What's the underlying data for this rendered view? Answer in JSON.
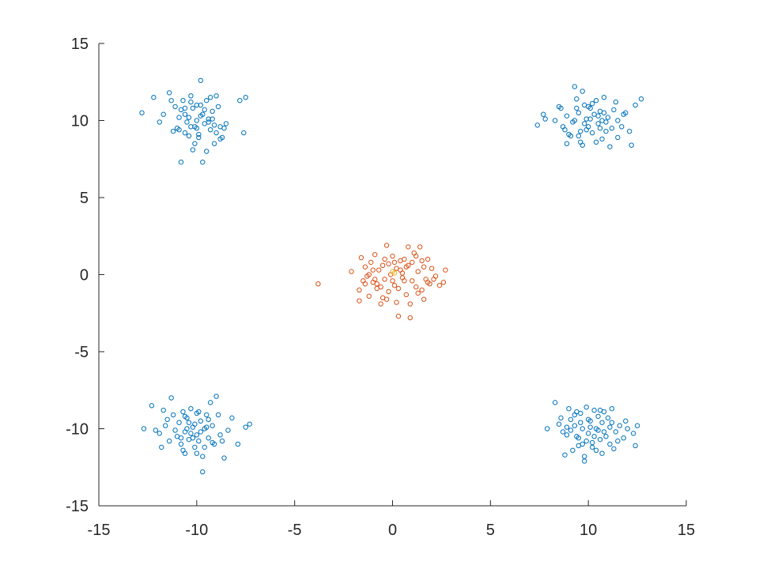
{
  "chart_data": {
    "type": "scatter",
    "title": "",
    "xlabel": "",
    "ylabel": "",
    "xlim": [
      -15,
      15
    ],
    "ylim": [
      -15,
      15
    ],
    "grid": false,
    "x_ticks": [
      "-15",
      "-10",
      "-5",
      "0",
      "5",
      "10",
      "15"
    ],
    "y_ticks": [
      "15",
      "10",
      "5",
      "0",
      "-5",
      "-10",
      "-15"
    ],
    "x_tick_values": [
      -15,
      -10,
      -5,
      0,
      5,
      10,
      15
    ],
    "y_tick_values": [
      15,
      10,
      5,
      0,
      -5,
      -10,
      -15
    ],
    "colors": {
      "outer": "#0072bd",
      "center": "#d95319",
      "center_highlight": "#edb120"
    },
    "series": [
      {
        "color": "#0072bd",
        "marker": "circle-open",
        "points": [
          [
            -12.8,
            10.5
          ],
          [
            -12.2,
            11.5
          ],
          [
            -11.9,
            9.9
          ],
          [
            -11.7,
            10.4
          ],
          [
            -11.4,
            11.8
          ],
          [
            -11.3,
            11.3
          ],
          [
            -11.2,
            9.3
          ],
          [
            -11.0,
            9.5
          ],
          [
            -10.9,
            9.4
          ],
          [
            -10.8,
            10.7
          ],
          [
            -10.7,
            11.3
          ],
          [
            -10.6,
            9.2
          ],
          [
            -10.5,
            9.9
          ],
          [
            -10.4,
            10.2
          ],
          [
            -10.3,
            11.2
          ],
          [
            -10.2,
            10.8
          ],
          [
            -10.1,
            9.6
          ],
          [
            -10.0,
            10.0
          ],
          [
            -9.9,
            9.1
          ],
          [
            -9.8,
            11.0
          ],
          [
            -9.7,
            10.4
          ],
          [
            -9.6,
            9.8
          ],
          [
            -9.5,
            11.3
          ],
          [
            -9.4,
            10.1
          ],
          [
            -9.3,
            9.4
          ],
          [
            -9.2,
            10.6
          ],
          [
            -9.1,
            8.5
          ],
          [
            -9.0,
            9.2
          ],
          [
            -8.9,
            10.9
          ],
          [
            -8.8,
            9.6
          ],
          [
            -8.7,
            8.9
          ],
          [
            -8.6,
            9.5
          ],
          [
            -8.5,
            9.8
          ],
          [
            -10.8,
            7.3
          ],
          [
            -9.7,
            7.3
          ],
          [
            -9.5,
            8.0
          ],
          [
            -10.2,
            8.1
          ],
          [
            -10.1,
            8.5
          ],
          [
            -9.9,
            8.9
          ],
          [
            -7.8,
            11.3
          ],
          [
            -7.5,
            11.5
          ],
          [
            -7.6,
            9.2
          ],
          [
            -10.6,
            10.4
          ],
          [
            -10.4,
            9.0
          ],
          [
            -10.0,
            11.0
          ],
          [
            -9.8,
            10.3
          ],
          [
            -9.3,
            11.5
          ],
          [
            -9.0,
            11.6
          ],
          [
            -8.8,
            8.8
          ],
          [
            -10.3,
            9.6
          ],
          [
            -9.8,
            12.6
          ],
          [
            -10.6,
            10.8
          ],
          [
            -11.1,
            10.9
          ],
          [
            -10.3,
            11.6
          ],
          [
            -9.4,
            9.9
          ],
          [
            -9.2,
            10.1
          ],
          [
            -10.9,
            10.2
          ],
          [
            -10.0,
            9.5
          ],
          [
            -9.6,
            10.7
          ],
          [
            -9.1,
            9.7
          ],
          [
            7.4,
            9.7
          ],
          [
            7.7,
            10.4
          ],
          [
            7.8,
            10.1
          ],
          [
            8.3,
            10.0
          ],
          [
            8.6,
            10.8
          ],
          [
            8.7,
            9.6
          ],
          [
            8.9,
            10.3
          ],
          [
            8.9,
            8.5
          ],
          [
            9.1,
            9.0
          ],
          [
            9.2,
            9.9
          ],
          [
            9.3,
            12.2
          ],
          [
            9.4,
            11.4
          ],
          [
            9.5,
            10.5
          ],
          [
            9.6,
            9.3
          ],
          [
            9.7,
            8.4
          ],
          [
            9.8,
            11.0
          ],
          [
            9.9,
            10.1
          ],
          [
            10.0,
            9.6
          ],
          [
            10.1,
            10.8
          ],
          [
            10.2,
            9.2
          ],
          [
            10.3,
            10.4
          ],
          [
            10.4,
            11.3
          ],
          [
            10.5,
            9.8
          ],
          [
            10.6,
            10.6
          ],
          [
            10.7,
            8.8
          ],
          [
            10.8,
            11.5
          ],
          [
            10.9,
            9.9
          ],
          [
            11.0,
            10.2
          ],
          [
            11.1,
            8.3
          ],
          [
            11.2,
            9.5
          ],
          [
            11.3,
            10.7
          ],
          [
            11.5,
            10.0
          ],
          [
            11.7,
            9.6
          ],
          [
            11.9,
            10.5
          ],
          [
            12.2,
            8.4
          ],
          [
            12.4,
            11.0
          ],
          [
            12.7,
            11.4
          ],
          [
            12.1,
            9.3
          ],
          [
            9.0,
            9.1
          ],
          [
            9.6,
            8.6
          ],
          [
            10.5,
            10.3
          ],
          [
            9.8,
            9.8
          ],
          [
            10.1,
            10.1
          ],
          [
            10.6,
            9.5
          ],
          [
            9.4,
            10.8
          ],
          [
            11.4,
            11.2
          ],
          [
            8.5,
            10.9
          ],
          [
            10.8,
            10.5
          ],
          [
            9.7,
            11.9
          ],
          [
            10.2,
            11.1
          ],
          [
            9.5,
            9.0
          ],
          [
            10.9,
            9.3
          ],
          [
            11.8,
            10.4
          ],
          [
            9.3,
            10.0
          ],
          [
            10.4,
            8.6
          ],
          [
            11.5,
            8.9
          ],
          [
            8.8,
            9.4
          ],
          [
            10.0,
            10.9
          ],
          [
            10.7,
            10.0
          ],
          [
            9.9,
            9.4
          ],
          [
            -12.7,
            -10.0
          ],
          [
            -12.3,
            -8.5
          ],
          [
            -12.1,
            -10.1
          ],
          [
            -11.9,
            -10.3
          ],
          [
            -11.7,
            -8.8
          ],
          [
            -11.5,
            -9.4
          ],
          [
            -11.4,
            -10.8
          ],
          [
            -11.3,
            -8.0
          ],
          [
            -11.2,
            -9.1
          ],
          [
            -11.0,
            -10.5
          ],
          [
            -10.9,
            -9.6
          ],
          [
            -10.8,
            -11.0
          ],
          [
            -10.7,
            -8.9
          ],
          [
            -10.6,
            -10.2
          ],
          [
            -10.5,
            -9.3
          ],
          [
            -10.4,
            -10.7
          ],
          [
            -10.3,
            -8.7
          ],
          [
            -10.2,
            -9.9
          ],
          [
            -10.1,
            -11.2
          ],
          [
            -10.0,
            -10.4
          ],
          [
            -9.9,
            -8.9
          ],
          [
            -9.8,
            -9.5
          ],
          [
            -9.7,
            -11.8
          ],
          [
            -9.6,
            -10.0
          ],
          [
            -9.5,
            -9.1
          ],
          [
            -9.4,
            -10.6
          ],
          [
            -9.3,
            -8.3
          ],
          [
            -9.2,
            -9.8
          ],
          [
            -9.1,
            -11.0
          ],
          [
            -9.0,
            -7.9
          ],
          [
            -8.8,
            -10.4
          ],
          [
            -8.6,
            -11.9
          ],
          [
            -8.4,
            -10.1
          ],
          [
            -8.2,
            -9.3
          ],
          [
            -7.9,
            -11.0
          ],
          [
            -7.5,
            -9.9
          ],
          [
            -7.3,
            -9.7
          ],
          [
            -9.7,
            -12.8
          ],
          [
            -10.6,
            -11.6
          ],
          [
            -8.7,
            -10.8
          ],
          [
            -10.3,
            -10.3
          ],
          [
            -10.1,
            -9.7
          ],
          [
            -9.9,
            -10.8
          ],
          [
            -11.1,
            -10.1
          ],
          [
            -10.7,
            -11.4
          ],
          [
            -9.4,
            -9.4
          ],
          [
            -10.0,
            -9.0
          ],
          [
            -10.5,
            -10.0
          ],
          [
            -9.6,
            -11.2
          ],
          [
            -11.6,
            -9.8
          ],
          [
            -10.2,
            -10.6
          ],
          [
            -9.8,
            -10.2
          ],
          [
            -10.4,
            -9.6
          ],
          [
            -11.8,
            -11.2
          ],
          [
            -9.2,
            -10.9
          ],
          [
            -10.8,
            -10.6
          ],
          [
            -9.5,
            -9.9
          ],
          [
            -10.0,
            -11.6
          ],
          [
            -8.9,
            -9.1
          ],
          [
            -10.6,
            -9.2
          ],
          [
            7.9,
            -10.0
          ],
          [
            8.3,
            -8.3
          ],
          [
            8.5,
            -9.7
          ],
          [
            8.7,
            -10.2
          ],
          [
            8.8,
            -11.7
          ],
          [
            8.9,
            -10.4
          ],
          [
            9.0,
            -8.7
          ],
          [
            9.1,
            -9.4
          ],
          [
            9.2,
            -11.4
          ],
          [
            9.3,
            -9.8
          ],
          [
            9.4,
            -8.9
          ],
          [
            9.5,
            -10.6
          ],
          [
            9.6,
            -9.0
          ],
          [
            9.7,
            -11.0
          ],
          [
            9.8,
            -12.1
          ],
          [
            9.9,
            -8.6
          ],
          [
            10.0,
            -10.3
          ],
          [
            10.1,
            -9.5
          ],
          [
            10.2,
            -11.2
          ],
          [
            10.3,
            -8.8
          ],
          [
            10.4,
            -10.0
          ],
          [
            10.5,
            -9.2
          ],
          [
            10.6,
            -10.7
          ],
          [
            10.7,
            -11.6
          ],
          [
            10.8,
            -8.9
          ],
          [
            10.9,
            -10.5
          ],
          [
            11.0,
            -9.3
          ],
          [
            11.1,
            -11.0
          ],
          [
            11.2,
            -8.7
          ],
          [
            11.4,
            -10.2
          ],
          [
            11.6,
            -9.8
          ],
          [
            11.8,
            -10.6
          ],
          [
            12.0,
            -10.0
          ],
          [
            12.3,
            -10.3
          ],
          [
            12.5,
            -9.8
          ],
          [
            12.4,
            -11.1
          ],
          [
            11.3,
            -11.3
          ],
          [
            9.8,
            -11.8
          ],
          [
            10.2,
            -10.9
          ],
          [
            9.6,
            -9.6
          ],
          [
            10.0,
            -9.4
          ],
          [
            10.8,
            -10.2
          ],
          [
            9.4,
            -10.5
          ],
          [
            11.2,
            -9.6
          ],
          [
            10.6,
            -8.8
          ],
          [
            9.7,
            -10.0
          ],
          [
            10.4,
            -11.4
          ],
          [
            9.1,
            -10.1
          ],
          [
            10.1,
            -9.9
          ],
          [
            11.5,
            -10.8
          ],
          [
            8.6,
            -9.3
          ],
          [
            9.9,
            -10.8
          ],
          [
            10.7,
            -9.6
          ],
          [
            11.9,
            -9.5
          ],
          [
            10.3,
            -10.5
          ],
          [
            9.3,
            -9.1
          ],
          [
            10.5,
            -10.1
          ],
          [
            8.9,
            -9.9
          ],
          [
            11.1,
            -9.9
          ],
          [
            9.5,
            -11.1
          ]
        ]
      },
      {
        "color": "#d95319",
        "marker": "circle-open",
        "points": [
          [
            -3.8,
            -0.6
          ],
          [
            -2.1,
            0.2
          ],
          [
            -1.7,
            -1.7
          ],
          [
            -1.6,
            1.1
          ],
          [
            -1.5,
            -0.4
          ],
          [
            -1.4,
            0.5
          ],
          [
            -1.3,
            -0.1
          ],
          [
            -1.2,
            -1.4
          ],
          [
            -1.1,
            0.8
          ],
          [
            -1.0,
            -0.5
          ],
          [
            -0.9,
            1.3
          ],
          [
            -0.8,
            -0.9
          ],
          [
            -0.7,
            0.3
          ],
          [
            -0.6,
            -1.9
          ],
          [
            -0.5,
            0.6
          ],
          [
            -0.4,
            -0.3
          ],
          [
            -0.3,
            1.9
          ],
          [
            -0.2,
            -1.1
          ],
          [
            -0.1,
            0.0
          ],
          [
            0.0,
            1.2
          ],
          [
            0.1,
            -0.7
          ],
          [
            0.2,
            0.4
          ],
          [
            0.3,
            -2.7
          ],
          [
            0.4,
            0.9
          ],
          [
            0.5,
            -0.2
          ],
          [
            0.6,
            1.0
          ],
          [
            0.7,
            -1.3
          ],
          [
            0.8,
            0.6
          ],
          [
            0.9,
            -2.8
          ],
          [
            1.0,
            -0.4
          ],
          [
            1.1,
            1.4
          ],
          [
            1.2,
            -0.8
          ],
          [
            1.3,
            0.2
          ],
          [
            1.4,
            1.8
          ],
          [
            1.5,
            -1.0
          ],
          [
            1.6,
            0.5
          ],
          [
            1.7,
            -0.3
          ],
          [
            1.8,
            1.0
          ],
          [
            1.9,
            -0.6
          ],
          [
            2.0,
            0.4
          ],
          [
            2.2,
            -0.1
          ],
          [
            2.4,
            -0.7
          ],
          [
            2.7,
            0.3
          ],
          [
            2.6,
            -0.5
          ],
          [
            -0.9,
            -0.3
          ],
          [
            -0.5,
            -1.5
          ],
          [
            0.2,
            -1.8
          ],
          [
            0.8,
            1.8
          ],
          [
            1.3,
            -1.2
          ],
          [
            -1.2,
            0.0
          ],
          [
            -0.2,
            0.7
          ],
          [
            0.5,
            0.1
          ],
          [
            1.0,
            0.8
          ],
          [
            -0.8,
            -0.6
          ],
          [
            0.3,
            -0.9
          ],
          [
            -1.4,
            -0.6
          ],
          [
            0.6,
            -0.4
          ],
          [
            1.5,
            0.9
          ],
          [
            -0.4,
            1.0
          ],
          [
            0.9,
            -1.9
          ],
          [
            -1.0,
            0.3
          ],
          [
            0.0,
            -0.4
          ],
          [
            1.2,
            1.2
          ],
          [
            2.1,
            -0.3
          ],
          [
            -0.6,
            -0.8
          ],
          [
            0.4,
            0.3
          ],
          [
            -1.7,
            -1.0
          ],
          [
            1.6,
            -1.6
          ],
          [
            0.7,
            0.5
          ],
          [
            -0.3,
            -1.6
          ],
          [
            0.1,
            0.8
          ],
          [
            1.8,
            -0.5
          ]
        ]
      },
      {
        "color": "#edb120",
        "marker": "circle-open",
        "points": [
          [
            0.0,
            0.2
          ],
          [
            0.1,
            0.1
          ]
        ]
      }
    ]
  }
}
